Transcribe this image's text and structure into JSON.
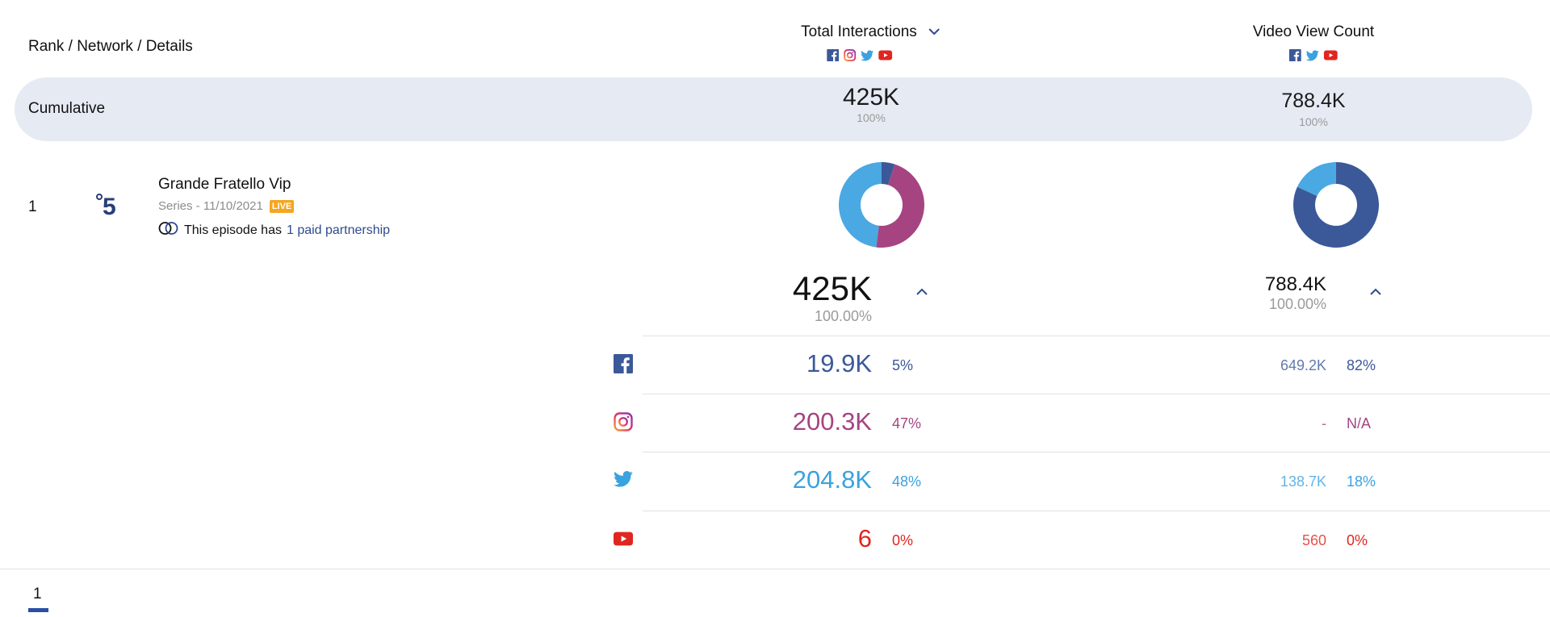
{
  "header": {
    "rank_label": "Rank / Network / Details",
    "col1_title": "Total Interactions",
    "col2_title": "Video View Count"
  },
  "cumulative": {
    "label": "Cumulative",
    "col1_value": "425K",
    "col1_pct": "100%",
    "col2_value": "788.4K",
    "col2_pct": "100%"
  },
  "show": {
    "rank": "1",
    "title": "Grande Fratello Vip",
    "meta": "Series - 11/10/2021",
    "badge": "LIVE",
    "partner_prefix": "This episode has",
    "partner_link": "1 paid partnership",
    "network_logo_text": "°5"
  },
  "totals": {
    "col1_value": "425K",
    "col1_pct": "100.00%",
    "col2_value": "788.4K",
    "col2_pct": "100.00%"
  },
  "donuts": {
    "interactions": [
      {
        "network": "facebook",
        "value": 5,
        "color": "#3b5998"
      },
      {
        "network": "instagram",
        "value": 47,
        "color": "#a64482"
      },
      {
        "network": "twitter",
        "value": 48,
        "color": "#4aa8e2"
      },
      {
        "network": "youtube",
        "value": 0,
        "color": "#e0261f"
      }
    ],
    "views": [
      {
        "network": "facebook",
        "value": 82,
        "color": "#3b5998"
      },
      {
        "network": "twitter",
        "value": 18,
        "color": "#4aa8e2"
      },
      {
        "network": "youtube",
        "value": 0.07,
        "color": "#e0261f"
      }
    ]
  },
  "rows": [
    {
      "network": "facebook",
      "icon": "facebook-icon",
      "val1": "19.9K",
      "pct1": "5%",
      "val2": "649.2K",
      "pct2": "82%",
      "color": "#3b5998"
    },
    {
      "network": "instagram",
      "icon": "instagram-icon",
      "val1": "200.3K",
      "pct1": "47%",
      "val2": "-",
      "pct2": "N/A",
      "color": "#a64482"
    },
    {
      "network": "twitter",
      "icon": "twitter-icon",
      "val1": "204.8K",
      "pct1": "48%",
      "val2": "138.7K",
      "pct2": "18%",
      "color": "#3aa2e0"
    },
    {
      "network": "youtube",
      "icon": "youtube-icon",
      "val1": "6",
      "pct1": "0%",
      "val2": "560",
      "pct2": "0%",
      "color": "#e0261f"
    }
  ],
  "pagination": {
    "current": "1"
  }
}
